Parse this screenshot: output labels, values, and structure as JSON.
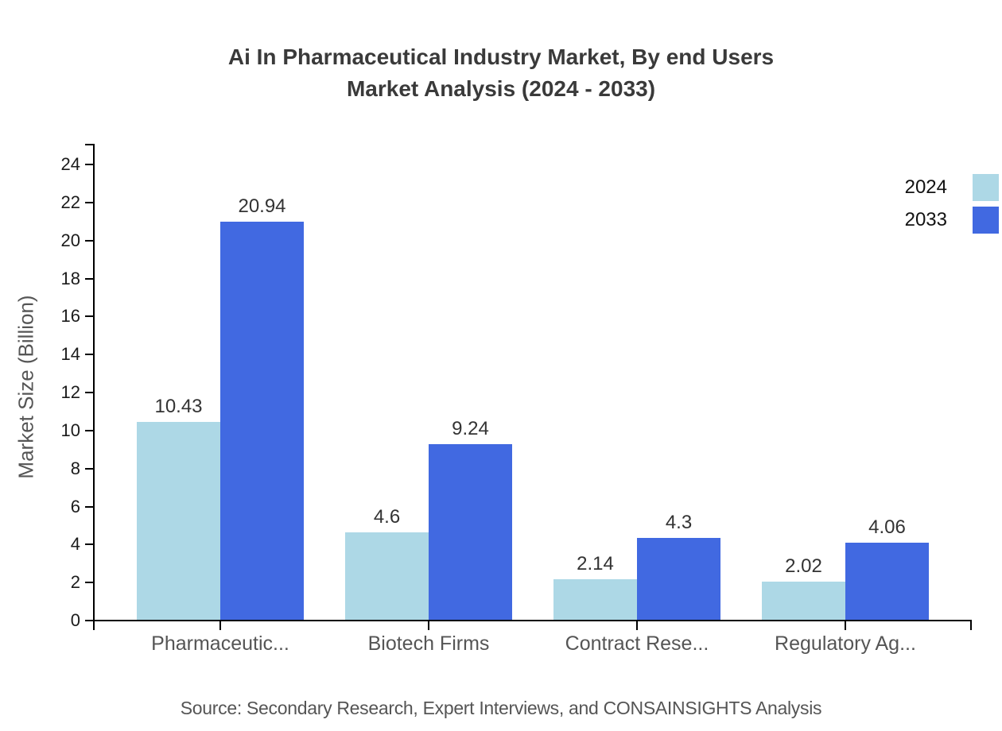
{
  "title": {
    "line1": "Ai In Pharmaceutical Industry Market, By end Users",
    "line2": "Market Analysis (2024 - 2033)"
  },
  "source": "Source: Secondary Research, Expert Interviews, and CONSAINSIGHTS Analysis",
  "legend": [
    {
      "label": "2024",
      "color": "#ADD8E6"
    },
    {
      "label": "2033",
      "color": "#4169E1"
    }
  ],
  "chart_data": {
    "type": "bar",
    "categories": [
      "Pharmaceutic...",
      "Biotech Firms",
      "Contract Rese...",
      "Regulatory Ag..."
    ],
    "series": [
      {
        "name": "2024",
        "color": "#ADD8E6",
        "values": [
          10.43,
          4.6,
          2.14,
          2.02
        ]
      },
      {
        "name": "2033",
        "color": "#4169E1",
        "values": [
          20.94,
          9.24,
          4.3,
          4.06
        ]
      }
    ],
    "title": "Ai In Pharmaceutical Industry Market, By end Users Market Analysis (2024 - 2033)",
    "xlabel": "",
    "ylabel": "Market Size (Billion)",
    "ylim": [
      0,
      24
    ],
    "yticks": [
      0,
      2,
      4,
      6,
      8,
      10,
      12,
      14,
      16,
      18,
      20,
      22,
      24
    ],
    "grid": false,
    "legend_position": "top-right",
    "value_labels_shown": true
  }
}
